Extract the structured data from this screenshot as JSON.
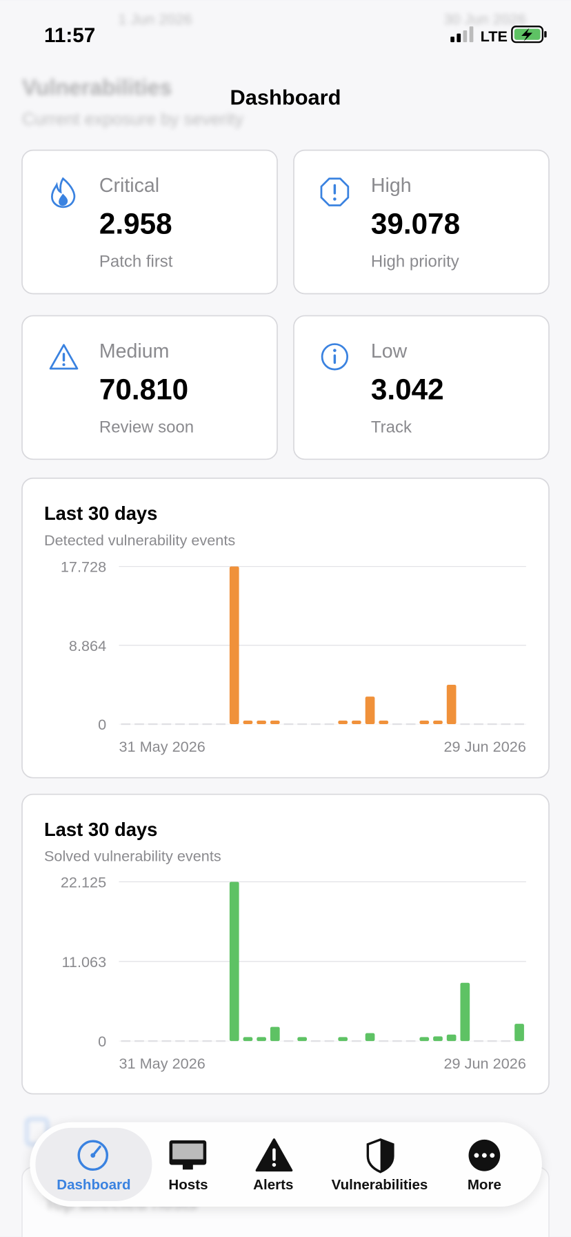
{
  "status_bar": {
    "time": "11:57",
    "network": "LTE"
  },
  "background": {
    "date_start": "1 Jun 2026",
    "date_end": "30 Jun 2026",
    "title": "Vulnerabilities",
    "subtitle": "Current exposure by severity",
    "section": "Top affected hosts"
  },
  "nav": {
    "title": "Dashboard"
  },
  "cards": [
    {
      "label": "Critical",
      "value": "2.958",
      "note": "Patch first"
    },
    {
      "label": "High",
      "value": "39.078",
      "note": "High priority"
    },
    {
      "label": "Medium",
      "value": "70.810",
      "note": "Review soon"
    },
    {
      "label": "Low",
      "value": "3.042",
      "note": "Track"
    }
  ],
  "chart_data": [
    {
      "type": "bar",
      "title": "Last 30 days",
      "subtitle": "Detected vulnerability events",
      "color": "#f0913a",
      "categories": [
        "31 May 2026",
        null,
        null,
        null,
        null,
        null,
        null,
        null,
        null,
        null,
        null,
        null,
        null,
        null,
        null,
        null,
        null,
        null,
        null,
        null,
        null,
        null,
        null,
        null,
        null,
        null,
        null,
        null,
        null,
        "29 Jun 2026"
      ],
      "values": [
        0,
        0,
        0,
        0,
        0,
        0,
        0,
        0,
        17728,
        400,
        400,
        400,
        0,
        0,
        0,
        0,
        400,
        400,
        3100,
        400,
        0,
        0,
        400,
        400,
        4430,
        0,
        0,
        0,
        0,
        0
      ],
      "ylim": [
        0,
        17728
      ],
      "yticks": [
        0,
        {
          "value": 8864,
          "label": "8.864"
        },
        {
          "value": 17728,
          "label": "17.728"
        }
      ],
      "grid": true
    },
    {
      "type": "bar",
      "title": "Last 30 days",
      "subtitle": "Solved vulnerability events",
      "color": "#5ec264",
      "categories": [
        "31 May 2026",
        null,
        null,
        null,
        null,
        null,
        null,
        null,
        null,
        null,
        null,
        null,
        null,
        null,
        null,
        null,
        null,
        null,
        null,
        null,
        null,
        null,
        null,
        null,
        null,
        null,
        null,
        null,
        null,
        "29 Jun 2026"
      ],
      "values": [
        0,
        0,
        0,
        0,
        0,
        0,
        0,
        0,
        22125,
        550,
        550,
        1970,
        0,
        550,
        0,
        0,
        550,
        0,
        1100,
        0,
        0,
        0,
        550,
        650,
        900,
        8100,
        0,
        0,
        0,
        2400
      ],
      "ylim": [
        0,
        22125
      ],
      "yticks": [
        0,
        {
          "value": 11063,
          "label": "11.063"
        },
        {
          "value": 22125,
          "label": "22.125"
        }
      ],
      "grid": true
    }
  ],
  "tabs": [
    "Dashboard",
    "Hosts",
    "Alerts",
    "Vulnerabilities",
    "More"
  ]
}
